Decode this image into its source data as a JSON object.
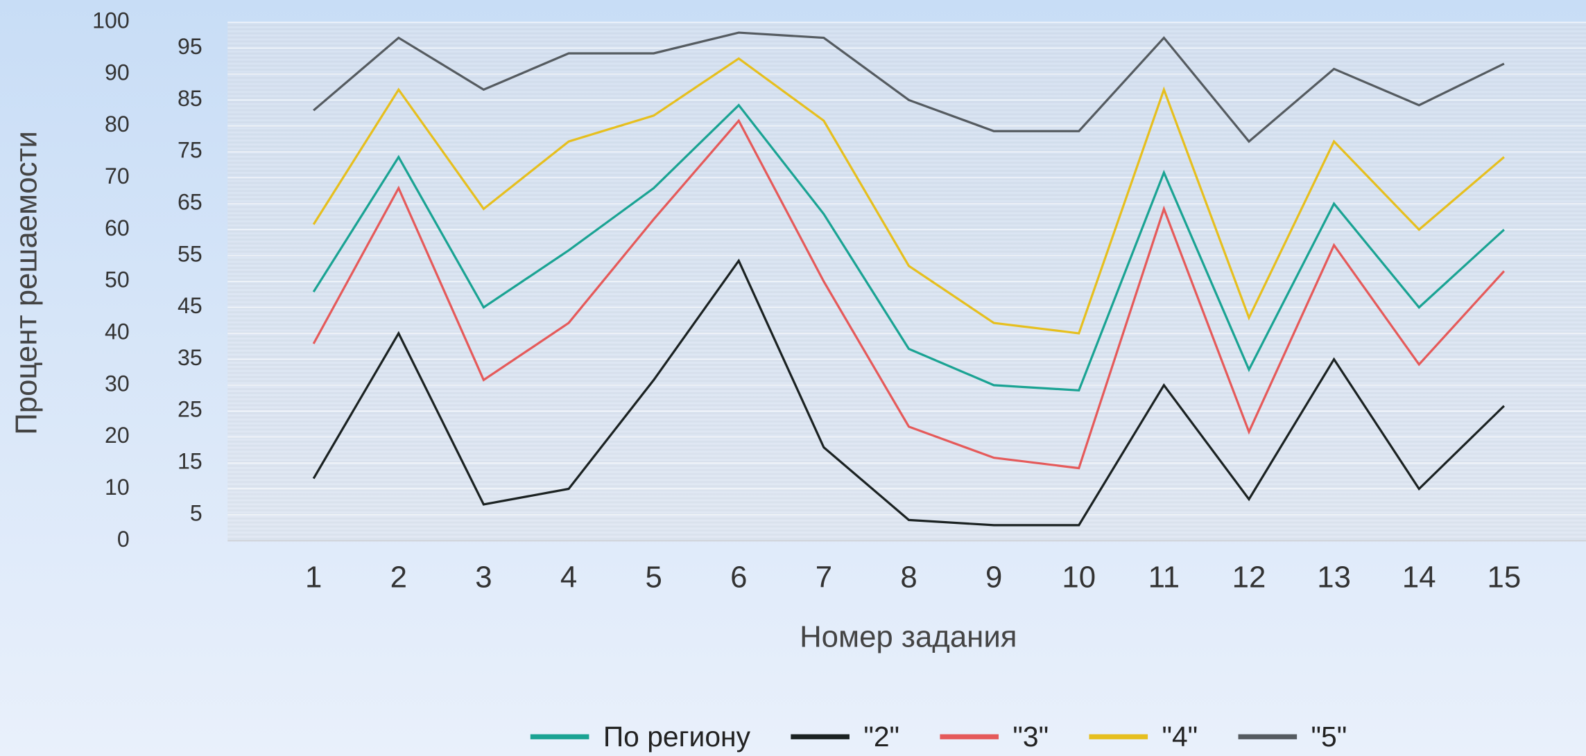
{
  "chart_data": {
    "type": "line",
    "xlabel": "Номер задания",
    "ylabel": "Процент решаемости",
    "categories": [
      "1",
      "2",
      "3",
      "4",
      "5",
      "6",
      "7",
      "8",
      "9",
      "10",
      "11",
      "12",
      "13",
      "14",
      "15"
    ],
    "series": [
      {
        "name": "По региону",
        "color": "#1aa393",
        "values": [
          48,
          74,
          45,
          56,
          68,
          84,
          63,
          37,
          30,
          29,
          71,
          33,
          65,
          45,
          60
        ]
      },
      {
        "name": "\"2\"",
        "color": "#1b2222",
        "values": [
          12,
          40,
          7,
          10,
          31,
          54,
          18,
          4,
          3,
          3,
          30,
          8,
          35,
          10,
          26
        ]
      },
      {
        "name": "\"3\"",
        "color": "#e55a5a",
        "values": [
          38,
          68,
          31,
          42,
          62,
          81,
          50,
          22,
          16,
          14,
          64,
          21,
          57,
          34,
          52
        ]
      },
      {
        "name": "\"4\"",
        "color": "#e6bf1e",
        "values": [
          61,
          87,
          64,
          77,
          82,
          93,
          81,
          53,
          42,
          40,
          87,
          43,
          77,
          60,
          74
        ]
      },
      {
        "name": "\"5\"",
        "color": "#555b60",
        "values": [
          83,
          97,
          87,
          94,
          94,
          98,
          97,
          85,
          79,
          79,
          97,
          77,
          91,
          84,
          92
        ]
      }
    ],
    "ylim": [
      0,
      100
    ],
    "yticks": [
      0,
      5,
      10,
      15,
      20,
      25,
      30,
      35,
      40,
      45,
      50,
      55,
      60,
      65,
      70,
      75,
      80,
      85,
      90,
      95,
      100
    ],
    "grid": true,
    "legend": "bottom"
  }
}
